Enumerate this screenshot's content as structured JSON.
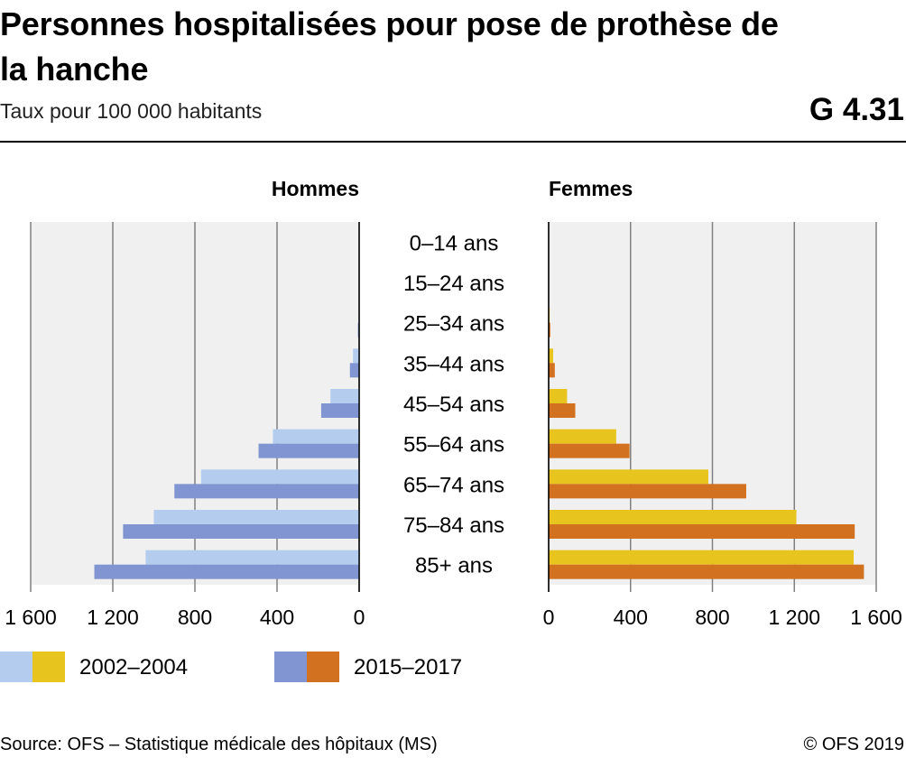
{
  "header": {
    "title": "Personnes hospitalisées pour pose de prothèse de la hanche",
    "subtitle": "Taux pour 100 000 habitants",
    "code": "G 4.31"
  },
  "legend": {
    "period1": "2002–2004",
    "period2": "2015–2017"
  },
  "footer": {
    "source": "Source: OFS – Statistique médicale des hôpitaux (MS)",
    "copyright": "© OFS 2019"
  },
  "colors": {
    "hommes_2002_2004": "#b4cdee",
    "hommes_2015_2017": "#8095d1",
    "femmes_2002_2004": "#e8c51e",
    "femmes_2015_2017": "#d2711f",
    "grid": "#808080",
    "plot_bg": "#f0f0f0"
  },
  "chart_data": {
    "type": "bar",
    "orientation": "horizontal",
    "layout": "population-pyramid",
    "categories": [
      "0–14 ans",
      "15–24 ans",
      "25–34 ans",
      "35–44 ans",
      "45–54 ans",
      "55–64 ans",
      "65–74 ans",
      "75–84 ans",
      "85+ ans"
    ],
    "panels": [
      {
        "name": "Hommes",
        "direction": "leftward",
        "xlim": [
          0,
          1600
        ],
        "ticks": [
          0,
          400,
          800,
          1200,
          1600
        ],
        "tick_labels": [
          "0",
          "400",
          "800",
          "1 200",
          "1 600"
        ],
        "series": [
          {
            "name": "2002–2004",
            "values": [
              0,
              0,
              3,
              30,
              140,
              420,
              770,
              1000,
              1040
            ]
          },
          {
            "name": "2015–2017",
            "values": [
              0,
              0,
              6,
              45,
              185,
              490,
              900,
              1150,
              1290
            ]
          }
        ]
      },
      {
        "name": "Femmes",
        "direction": "rightward",
        "xlim": [
          0,
          1600
        ],
        "ticks": [
          0,
          400,
          800,
          1200,
          1600
        ],
        "tick_labels": [
          "0",
          "400",
          "800",
          "1 200",
          "1 600"
        ],
        "series": [
          {
            "name": "2002–2004",
            "values": [
              0,
              0,
              5,
              22,
              90,
              330,
              780,
              1210,
              1490
            ]
          },
          {
            "name": "2015–2017",
            "values": [
              0,
              0,
              8,
              30,
              130,
              395,
              965,
              1495,
              1540
            ]
          }
        ]
      }
    ],
    "grid": true,
    "legend_position": "bottom-left"
  }
}
